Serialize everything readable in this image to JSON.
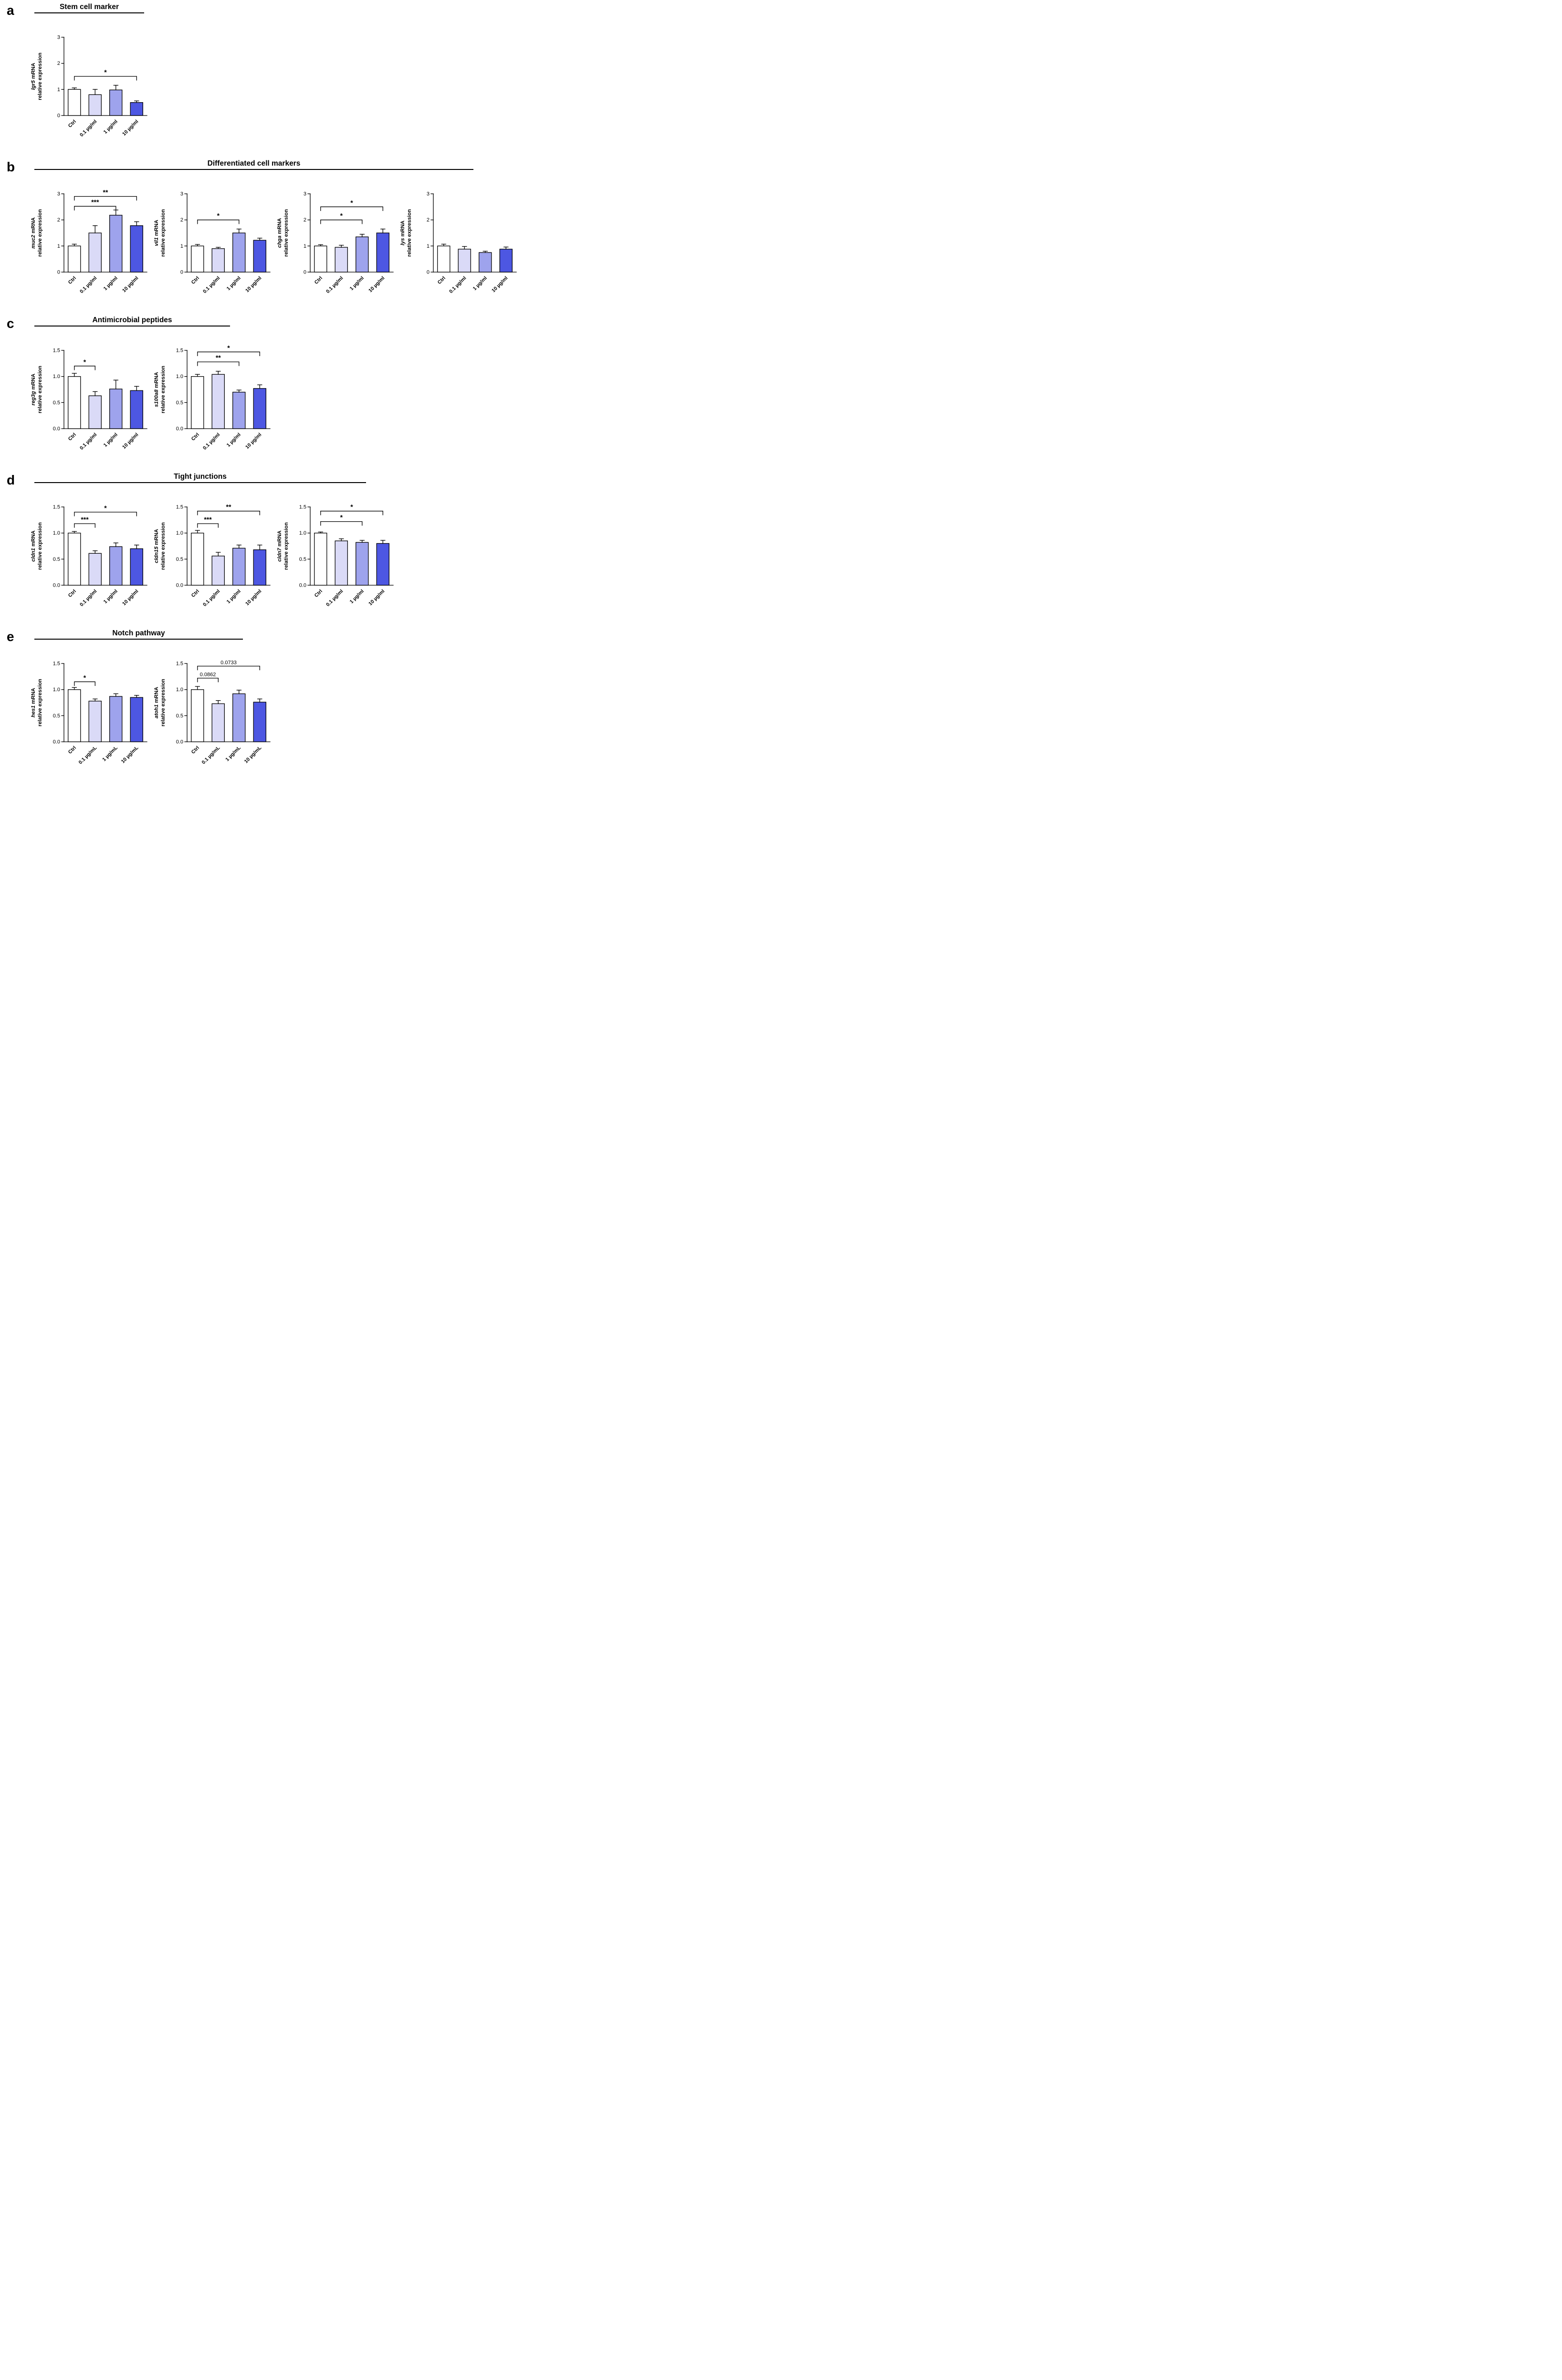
{
  "figure": {
    "background": "#ffffff"
  },
  "colors": {
    "bar_fill": [
      "#FFFFFF",
      "#DADAF7",
      "#9EA3ED",
      "#4D57E2"
    ],
    "bar_stroke": "#000000",
    "axis": "#000000"
  },
  "panels": [
    {
      "label": "a",
      "title": "Stem cell marker",
      "underline_width": 230
    },
    {
      "label": "b",
      "title": "Differentiated cell markers",
      "underline_width": 920
    },
    {
      "label": "c",
      "title": "Antimicrobial peptides",
      "underline_width": 410
    },
    {
      "label": "d",
      "title": "Tight junctions",
      "underline_width": 695
    },
    {
      "label": "e",
      "title": "Notch pathway",
      "underline_width": 437
    }
  ],
  "chart_data": [
    {
      "type": "bar",
      "panel": "a",
      "gene": "lgr5",
      "ylabel_line1_suffix": " mRNA",
      "ylabel_line2": "relative expression",
      "ymax": 3,
      "ylim": [
        0,
        3
      ],
      "yticks": [
        {
          "v": 0,
          "label": "0"
        },
        {
          "v": 1,
          "label": "1"
        },
        {
          "v": 2,
          "label": "2"
        },
        {
          "v": 3,
          "label": "3"
        }
      ],
      "categories": [
        "Ctrl",
        "0.1 µg/ml",
        "1 µg/ml",
        "10 µg/ml"
      ],
      "values": [
        1.0,
        0.8,
        0.98,
        0.5
      ],
      "errors": [
        0.06,
        0.2,
        0.18,
        0.06
      ],
      "significance": [
        {
          "from": 0,
          "to": 3,
          "label": "*",
          "y": 1.5
        }
      ]
    },
    {
      "type": "bar",
      "panel": "b",
      "gene": "muc2",
      "ylabel_line1_suffix": " mRNA",
      "ylabel_line2": "relative expression",
      "ymax": 3,
      "ylim": [
        0,
        3
      ],
      "yticks": [
        {
          "v": 0,
          "label": "0"
        },
        {
          "v": 1,
          "label": "1"
        },
        {
          "v": 2,
          "label": "2"
        },
        {
          "v": 3,
          "label": "3"
        }
      ],
      "categories": [
        "Ctrl",
        "0.1 µg/ml",
        "1 µg/ml",
        "10 µg/ml"
      ],
      "values": [
        1.0,
        1.5,
        2.18,
        1.78
      ],
      "errors": [
        0.07,
        0.28,
        0.2,
        0.15
      ],
      "significance": [
        {
          "from": 0,
          "to": 2,
          "label": "***",
          "y": 2.52
        },
        {
          "from": 0,
          "to": 3,
          "label": "**",
          "y": 2.9
        }
      ]
    },
    {
      "type": "bar",
      "panel": "b",
      "gene": "vil1",
      "ylabel_line1_suffix": " mRNA",
      "ylabel_line2": "relative expression",
      "ymax": 3,
      "ylim": [
        0,
        3
      ],
      "yticks": [
        {
          "v": 0,
          "label": "0"
        },
        {
          "v": 1,
          "label": "1"
        },
        {
          "v": 2,
          "label": "2"
        },
        {
          "v": 3,
          "label": "3"
        }
      ],
      "categories": [
        "Ctrl",
        "0.1 µg/ml",
        "1 µg/ml",
        "10 µg/ml"
      ],
      "values": [
        1.0,
        0.9,
        1.5,
        1.22
      ],
      "errors": [
        0.06,
        0.05,
        0.15,
        0.08
      ],
      "significance": [
        {
          "from": 0,
          "to": 2,
          "label": "*",
          "y": 2.0
        }
      ]
    },
    {
      "type": "bar",
      "panel": "b",
      "gene": "chga",
      "ylabel_line1_suffix": " mRNA",
      "ylabel_line2": "relative expression",
      "ymax": 3,
      "ylim": [
        0,
        3
      ],
      "yticks": [
        {
          "v": 0,
          "label": "0"
        },
        {
          "v": 1,
          "label": "1"
        },
        {
          "v": 2,
          "label": "2"
        },
        {
          "v": 3,
          "label": "3"
        }
      ],
      "categories": [
        "Ctrl",
        "0.1 µg/ml",
        "1 µg/ml",
        "10 µg/ml"
      ],
      "values": [
        1.0,
        0.95,
        1.35,
        1.5
      ],
      "errors": [
        0.05,
        0.08,
        0.1,
        0.15
      ],
      "significance": [
        {
          "from": 0,
          "to": 2,
          "label": "*",
          "y": 2.0
        },
        {
          "from": 0,
          "to": 3,
          "label": "*",
          "y": 2.5
        }
      ]
    },
    {
      "type": "bar",
      "panel": "b",
      "gene": "lys",
      "ylabel_line1_suffix": " mRNA",
      "ylabel_line2": "relative expression",
      "ymax": 3,
      "ylim": [
        0,
        3
      ],
      "yticks": [
        {
          "v": 0,
          "label": "0"
        },
        {
          "v": 1,
          "label": "1"
        },
        {
          "v": 2,
          "label": "2"
        },
        {
          "v": 3,
          "label": "3"
        }
      ],
      "categories": [
        "Ctrl",
        "0.1 µg/ml",
        "1 µg/ml",
        "10 µg/ml"
      ],
      "values": [
        1.0,
        0.88,
        0.75,
        0.88
      ],
      "errors": [
        0.07,
        0.1,
        0.05,
        0.08
      ],
      "significance": []
    },
    {
      "type": "bar",
      "panel": "c",
      "gene": "reg3g",
      "ylabel_line1_suffix": " mRNA",
      "ylabel_line2": "relative expression",
      "ymax": 1.5,
      "ylim": [
        0,
        1.5
      ],
      "yticks": [
        {
          "v": 0,
          "label": "0.0"
        },
        {
          "v": 0.5,
          "label": "0.5"
        },
        {
          "v": 1,
          "label": "1.0"
        },
        {
          "v": 1.5,
          "label": "1.5"
        }
      ],
      "categories": [
        "Ctrl",
        "0.1 µg/ml",
        "1 µg/ml",
        "10 µg/ml"
      ],
      "values": [
        1.0,
        0.63,
        0.76,
        0.73
      ],
      "errors": [
        0.06,
        0.08,
        0.17,
        0.08
      ],
      "significance": [
        {
          "from": 0,
          "to": 1,
          "label": "*",
          "y": 1.2
        }
      ]
    },
    {
      "type": "bar",
      "panel": "c",
      "gene": "s100a8",
      "ylabel_line1_suffix": " mRNA",
      "ylabel_line2": "relative expression",
      "ymax": 1.5,
      "ylim": [
        0,
        1.5
      ],
      "yticks": [
        {
          "v": 0,
          "label": "0.0"
        },
        {
          "v": 0.5,
          "label": "0.5"
        },
        {
          "v": 1,
          "label": "1.0"
        },
        {
          "v": 1.5,
          "label": "1.5"
        }
      ],
      "categories": [
        "Ctrl",
        "0.1 µg/ml",
        "1 µg/ml",
        "10 µg/ml"
      ],
      "values": [
        1.0,
        1.04,
        0.7,
        0.77
      ],
      "errors": [
        0.04,
        0.06,
        0.04,
        0.07
      ],
      "significance": [
        {
          "from": 0,
          "to": 2,
          "label": "**",
          "y": 1.28
        },
        {
          "from": 0,
          "to": 3,
          "label": "*",
          "y": 1.47
        }
      ]
    },
    {
      "type": "bar",
      "panel": "d",
      "gene": "cldn1",
      "ylabel_line1_suffix": " mRNA",
      "ylabel_line2": "relative expression",
      "ymax": 1.5,
      "ylim": [
        0,
        1.5
      ],
      "yticks": [
        {
          "v": 0,
          "label": "0.0"
        },
        {
          "v": 0.5,
          "label": "0.5"
        },
        {
          "v": 1,
          "label": "1.0"
        },
        {
          "v": 1.5,
          "label": "1.5"
        }
      ],
      "categories": [
        "Ctrl",
        "0.1 µg/ml",
        "1 µg/ml",
        "10 µg/ml"
      ],
      "values": [
        1.0,
        0.61,
        0.74,
        0.7
      ],
      "errors": [
        0.03,
        0.05,
        0.07,
        0.07
      ],
      "significance": [
        {
          "from": 0,
          "to": 1,
          "label": "***",
          "y": 1.18
        },
        {
          "from": 0,
          "to": 3,
          "label": "*",
          "y": 1.4
        }
      ]
    },
    {
      "type": "bar",
      "panel": "d",
      "gene": "cldn15",
      "ylabel_line1_suffix": " mRNA",
      "ylabel_line2": "relative expression",
      "ymax": 1.5,
      "ylim": [
        0,
        1.5
      ],
      "yticks": [
        {
          "v": 0,
          "label": "0.0"
        },
        {
          "v": 0.5,
          "label": "0.5"
        },
        {
          "v": 1,
          "label": "1.0"
        },
        {
          "v": 1.5,
          "label": "1.5"
        }
      ],
      "categories": [
        "Ctrl",
        "0.1 µg/ml",
        "1 µg/ml",
        "10 µg/ml"
      ],
      "values": [
        1.0,
        0.56,
        0.71,
        0.68
      ],
      "errors": [
        0.05,
        0.07,
        0.06,
        0.09
      ],
      "significance": [
        {
          "from": 0,
          "to": 1,
          "label": "***",
          "y": 1.18
        },
        {
          "from": 0,
          "to": 3,
          "label": "**",
          "y": 1.42
        }
      ]
    },
    {
      "type": "bar",
      "panel": "d",
      "gene": "cldn7",
      "ylabel_line1_suffix": " mRNA",
      "ylabel_line2": "relative expression",
      "ymax": 1.5,
      "ylim": [
        0,
        1.5
      ],
      "yticks": [
        {
          "v": 0,
          "label": "0.0"
        },
        {
          "v": 0.5,
          "label": "0.5"
        },
        {
          "v": 1,
          "label": "1.0"
        },
        {
          "v": 1.5,
          "label": "1.5"
        }
      ],
      "categories": [
        "Ctrl",
        "0.1 µg/ml",
        "1 µg/ml",
        "10 µg/ml"
      ],
      "values": [
        1.0,
        0.85,
        0.82,
        0.8
      ],
      "errors": [
        0.02,
        0.04,
        0.04,
        0.06
      ],
      "significance": [
        {
          "from": 0,
          "to": 2,
          "label": "*",
          "y": 1.22
        },
        {
          "from": 0,
          "to": 3,
          "label": "*",
          "y": 1.42
        }
      ]
    },
    {
      "type": "bar",
      "panel": "e",
      "gene": "hes1",
      "ylabel_line1_suffix": " mRNA",
      "ylabel_line2": "relative expression",
      "ymax": 1.5,
      "ylim": [
        0,
        1.5
      ],
      "yticks": [
        {
          "v": 0,
          "label": "0.0"
        },
        {
          "v": 0.5,
          "label": "0.5"
        },
        {
          "v": 1,
          "label": "1.0"
        },
        {
          "v": 1.5,
          "label": "1.5"
        }
      ],
      "categories": [
        "Ctrl",
        "0.1 µg/mL",
        "1 µg/mL",
        "10 µg/mL"
      ],
      "values": [
        1.0,
        0.78,
        0.87,
        0.85
      ],
      "errors": [
        0.04,
        0.04,
        0.05,
        0.04
      ],
      "significance": [
        {
          "from": 0,
          "to": 1,
          "label": "*",
          "y": 1.15
        }
      ]
    },
    {
      "type": "bar",
      "panel": "e",
      "gene": "atoh1",
      "ylabel_line1_suffix": " mRNA",
      "ylabel_line2": "relative expression",
      "ymax": 1.5,
      "ylim": [
        0,
        1.5
      ],
      "yticks": [
        {
          "v": 0,
          "label": "0.0"
        },
        {
          "v": 0.5,
          "label": "0.5"
        },
        {
          "v": 1,
          "label": "1.0"
        },
        {
          "v": 1.5,
          "label": "1.5"
        }
      ],
      "categories": [
        "Ctrl",
        "0.1 µg/mL",
        "1 µg/mL",
        "10 µg/mL"
      ],
      "values": [
        1.0,
        0.73,
        0.92,
        0.76
      ],
      "errors": [
        0.06,
        0.06,
        0.07,
        0.06
      ],
      "significance": [
        {
          "from": 0,
          "to": 1,
          "label": "0.0862",
          "y": 1.22
        },
        {
          "from": 0,
          "to": 3,
          "label": "0.0733",
          "y": 1.45
        }
      ]
    }
  ]
}
